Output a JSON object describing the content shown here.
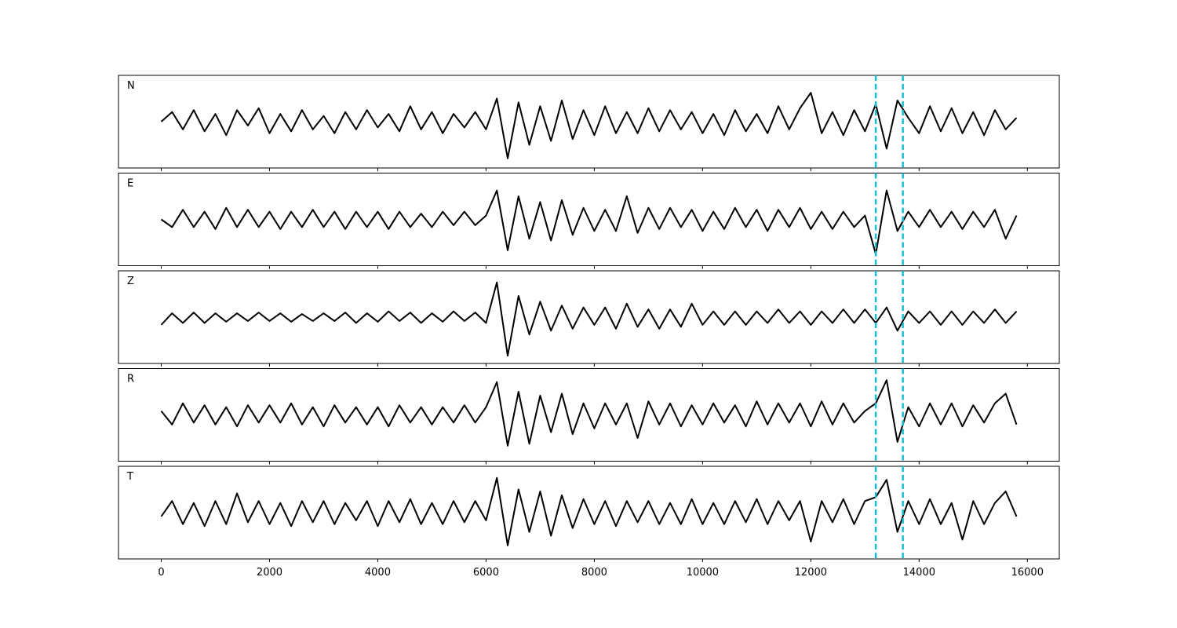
{
  "chart_data": {
    "type": "line",
    "x": [
      0,
      200,
      400,
      600,
      800,
      1000,
      1200,
      1400,
      1600,
      1800,
      2000,
      2200,
      2400,
      2600,
      2800,
      3000,
      3200,
      3400,
      3600,
      3800,
      4000,
      4200,
      4400,
      4600,
      4800,
      5000,
      5200,
      5400,
      5600,
      5800,
      6000,
      6200,
      6400,
      6600,
      6800,
      7000,
      7200,
      7400,
      7600,
      7800,
      8000,
      8200,
      8400,
      8600,
      8800,
      9000,
      9200,
      9400,
      9600,
      9800,
      10000,
      10200,
      10400,
      10600,
      10800,
      11000,
      11200,
      11400,
      11600,
      11800,
      12000,
      12200,
      12400,
      12600,
      12800,
      13000,
      13200,
      13400,
      13600,
      13800,
      14000,
      14200,
      14400,
      14600,
      14800,
      15000,
      15200,
      15400,
      15600,
      15800
    ],
    "xlim": [
      -790,
      16590
    ],
    "xticks": [
      0,
      2000,
      4000,
      6000,
      8000,
      10000,
      12000,
      14000,
      16000
    ],
    "ylim": [
      -1.2,
      1.2
    ],
    "vlines": [
      13200,
      13700
    ],
    "vline_color": "#17becf",
    "series": [
      {
        "name": "N",
        "color": "#000000",
        "values": [
          0.0,
          0.25,
          -0.2,
          0.3,
          -0.25,
          0.2,
          -0.35,
          0.3,
          -0.1,
          0.35,
          -0.3,
          0.2,
          -0.25,
          0.3,
          -0.2,
          0.15,
          -0.3,
          0.25,
          -0.2,
          0.3,
          -0.15,
          0.2,
          -0.25,
          0.4,
          -0.2,
          0.25,
          -0.3,
          0.2,
          -0.15,
          0.25,
          -0.2,
          0.6,
          -0.95,
          0.5,
          -0.6,
          0.4,
          -0.5,
          0.55,
          -0.45,
          0.3,
          -0.35,
          0.4,
          -0.3,
          0.25,
          -0.3,
          0.35,
          -0.25,
          0.3,
          -0.2,
          0.25,
          -0.3,
          0.2,
          -0.35,
          0.3,
          -0.25,
          0.2,
          -0.3,
          0.4,
          -0.2,
          0.35,
          0.75,
          -0.3,
          0.25,
          -0.35,
          0.3,
          -0.25,
          0.45,
          -0.7,
          0.55,
          0.1,
          -0.3,
          0.4,
          -0.25,
          0.35,
          -0.3,
          0.25,
          -0.35,
          0.3,
          -0.2,
          0.1
        ]
      },
      {
        "name": "E",
        "color": "#000000",
        "values": [
          0.0,
          -0.2,
          0.25,
          -0.2,
          0.2,
          -0.25,
          0.3,
          -0.2,
          0.25,
          -0.2,
          0.2,
          -0.25,
          0.2,
          -0.2,
          0.25,
          -0.2,
          0.2,
          -0.25,
          0.2,
          -0.2,
          0.2,
          -0.25,
          0.2,
          -0.2,
          0.15,
          -0.2,
          0.2,
          -0.15,
          0.2,
          -0.15,
          0.1,
          0.75,
          -0.8,
          0.6,
          -0.5,
          0.45,
          -0.55,
          0.5,
          -0.4,
          0.3,
          -0.3,
          0.25,
          -0.3,
          0.6,
          -0.35,
          0.3,
          -0.25,
          0.3,
          -0.2,
          0.25,
          -0.3,
          0.2,
          -0.25,
          0.3,
          -0.2,
          0.25,
          -0.3,
          0.25,
          -0.2,
          0.3,
          -0.25,
          0.2,
          -0.25,
          0.2,
          -0.2,
          0.1,
          -0.9,
          0.75,
          -0.3,
          0.2,
          -0.2,
          0.25,
          -0.2,
          0.2,
          -0.25,
          0.2,
          -0.2,
          0.25,
          -0.5,
          0.1
        ]
      },
      {
        "name": "Z",
        "color": "#000000",
        "values": [
          -0.2,
          0.1,
          -0.15,
          0.12,
          -0.15,
          0.1,
          -0.12,
          0.1,
          -0.1,
          0.12,
          -0.1,
          0.1,
          -0.12,
          0.08,
          -0.1,
          0.1,
          -0.1,
          0.12,
          -0.15,
          0.1,
          -0.12,
          0.15,
          -0.1,
          0.12,
          -0.15,
          0.1,
          -0.12,
          0.15,
          -0.1,
          0.12,
          -0.15,
          0.9,
          -1.0,
          0.55,
          -0.45,
          0.4,
          -0.35,
          0.3,
          -0.3,
          0.25,
          -0.2,
          0.25,
          -0.3,
          0.35,
          -0.25,
          0.2,
          -0.3,
          0.2,
          -0.25,
          0.35,
          -0.2,
          0.15,
          -0.2,
          0.15,
          -0.2,
          0.15,
          -0.15,
          0.2,
          -0.15,
          0.15,
          -0.2,
          0.15,
          -0.15,
          0.2,
          -0.15,
          0.2,
          -0.15,
          0.25,
          -0.35,
          0.15,
          -0.15,
          0.15,
          -0.2,
          0.15,
          -0.2,
          0.15,
          -0.15,
          0.2,
          -0.15,
          0.15
        ]
      },
      {
        "name": "R",
        "color": "#000000",
        "values": [
          0.1,
          -0.25,
          0.3,
          -0.2,
          0.25,
          -0.25,
          0.2,
          -0.3,
          0.25,
          -0.2,
          0.25,
          -0.2,
          0.3,
          -0.25,
          0.2,
          -0.3,
          0.25,
          -0.2,
          0.2,
          -0.25,
          0.2,
          -0.3,
          0.25,
          -0.2,
          0.2,
          -0.25,
          0.2,
          -0.2,
          0.25,
          -0.2,
          0.2,
          0.85,
          -0.8,
          0.6,
          -0.75,
          0.5,
          -0.45,
          0.55,
          -0.5,
          0.3,
          -0.35,
          0.3,
          -0.25,
          0.3,
          -0.6,
          0.35,
          -0.25,
          0.3,
          -0.3,
          0.25,
          -0.25,
          0.3,
          -0.2,
          0.25,
          -0.3,
          0.35,
          -0.25,
          0.3,
          -0.2,
          0.3,
          -0.3,
          0.35,
          -0.25,
          0.3,
          -0.2,
          0.1,
          0.3,
          0.9,
          -0.7,
          0.2,
          -0.3,
          0.3,
          -0.25,
          0.3,
          -0.3,
          0.25,
          -0.2,
          0.3,
          0.55,
          -0.25
        ]
      },
      {
        "name": "T",
        "color": "#000000",
        "values": [
          -0.1,
          0.3,
          -0.3,
          0.25,
          -0.35,
          0.3,
          -0.3,
          0.5,
          -0.25,
          0.3,
          -0.3,
          0.25,
          -0.35,
          0.3,
          -0.25,
          0.3,
          -0.3,
          0.25,
          -0.2,
          0.3,
          -0.35,
          0.3,
          -0.25,
          0.35,
          -0.3,
          0.25,
          -0.3,
          0.3,
          -0.25,
          0.3,
          -0.2,
          0.9,
          -0.85,
          0.6,
          -0.5,
          0.55,
          -0.6,
          0.45,
          -0.4,
          0.35,
          -0.3,
          0.3,
          -0.35,
          0.3,
          -0.25,
          0.3,
          -0.3,
          0.25,
          -0.3,
          0.35,
          -0.3,
          0.25,
          -0.3,
          0.3,
          -0.25,
          0.35,
          -0.3,
          0.3,
          -0.2,
          0.3,
          -0.75,
          0.3,
          -0.25,
          0.35,
          -0.3,
          0.3,
          0.4,
          0.85,
          -0.5,
          0.3,
          -0.3,
          0.35,
          -0.3,
          0.25,
          -0.7,
          0.3,
          -0.3,
          0.25,
          0.55,
          -0.1
        ]
      }
    ]
  }
}
